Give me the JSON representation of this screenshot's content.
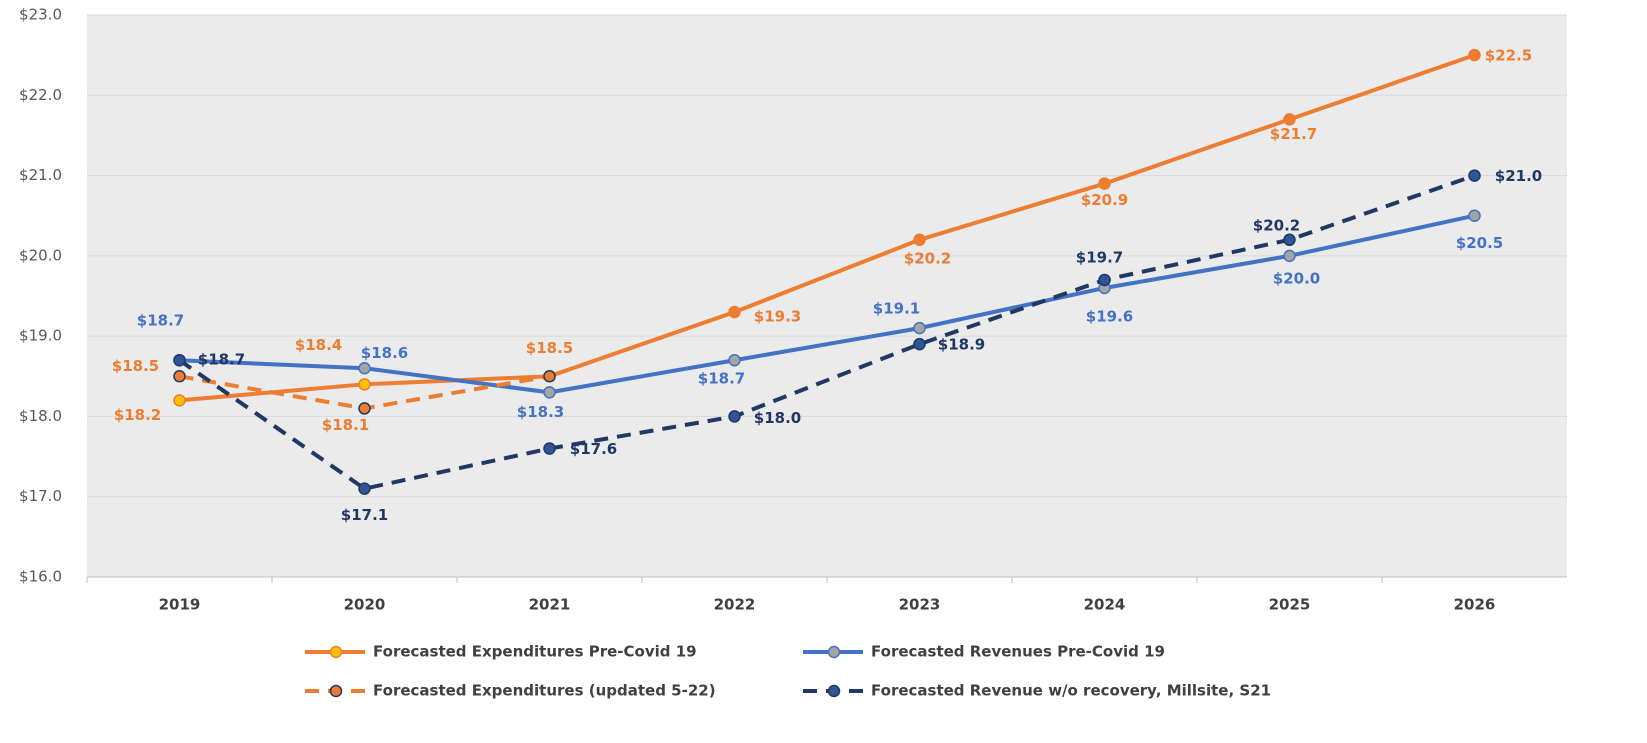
{
  "chart_data": {
    "type": "line",
    "categories": [
      "2019",
      "2020",
      "2021",
      "2022",
      "2023",
      "2024",
      "2025",
      "2026"
    ],
    "ylim": [
      16,
      23
    ],
    "yticks": [
      {
        "value": 16,
        "label": "$16.0"
      },
      {
        "value": 17,
        "label": "$17.0"
      },
      {
        "value": 18,
        "label": "$18.0"
      },
      {
        "value": 19,
        "label": "$19.0"
      },
      {
        "value": 20,
        "label": "$20.0"
      },
      {
        "value": 21,
        "label": "$21.0"
      },
      {
        "value": 22,
        "label": "$22.0"
      },
      {
        "value": 23,
        "label": "$23.0"
      }
    ],
    "grid": true,
    "legend": "bottom",
    "series": [
      {
        "name": "Forecasted Expenditures Pre-Covid 19",
        "color": "#ED7D31",
        "dashed": false,
        "marker_colors": [
          "#FFC000",
          "#FFC000",
          "#ED7D31",
          "#ED7D31",
          "#ED7D31",
          "#ED7D31",
          "#ED7D31",
          "#ED7D31"
        ],
        "values": [
          18.2,
          18.4,
          18.5,
          19.3,
          20.2,
          20.9,
          21.7,
          22.5
        ],
        "value_labels": [
          "$18.2",
          "$18.4",
          "$18.5",
          "$19.3",
          "$20.2",
          "$20.9",
          "$21.7",
          "$22.5"
        ]
      },
      {
        "name": "Forecasted Revenues Pre-Covid 19",
        "color": "#4472C4",
        "dashed": false,
        "marker_colors": [
          "#A5A5A5",
          "#A5A5A5",
          "#A5A5A5",
          "#A5A5A5",
          "#A5A5A5",
          "#A5A5A5",
          "#A5A5A5",
          "#A5A5A5"
        ],
        "values": [
          18.7,
          18.6,
          18.3,
          18.7,
          19.1,
          19.6,
          20.0,
          20.5
        ],
        "value_labels": [
          "$18.7",
          "$18.6",
          "$18.3",
          "$18.7",
          "$19.1",
          "$19.6",
          "$20.0",
          "$20.5"
        ]
      },
      {
        "name": "Forecasted Expenditures (updated 5-22)",
        "color": "#ED7D31",
        "dashed": true,
        "marker_colors": [
          "#ED7D31",
          "#ED7D31",
          "#ED7D31",
          null,
          null,
          null,
          null,
          null
        ],
        "values": [
          18.5,
          18.1,
          18.5,
          null,
          null,
          null,
          null,
          null
        ],
        "value_labels": [
          "$18.5",
          "$18.1",
          null,
          null,
          null,
          null,
          null,
          null
        ]
      },
      {
        "name": "Forecasted Revenue w/o recovery, Millsite, S21",
        "color": "#1F3864",
        "dashed": true,
        "marker_colors": [
          "#2F5597",
          "#2F5597",
          "#2F5597",
          "#2F5597",
          "#2F5597",
          "#2F5597",
          "#2F5597",
          "#2F5597"
        ],
        "values": [
          18.7,
          17.1,
          17.6,
          18.0,
          18.9,
          19.7,
          20.2,
          21.0
        ],
        "value_labels": [
          "$18.7",
          "$17.1",
          "$17.6",
          "$18.0",
          "$18.9",
          "$19.7",
          "$20.2",
          "$21.0"
        ]
      }
    ]
  }
}
